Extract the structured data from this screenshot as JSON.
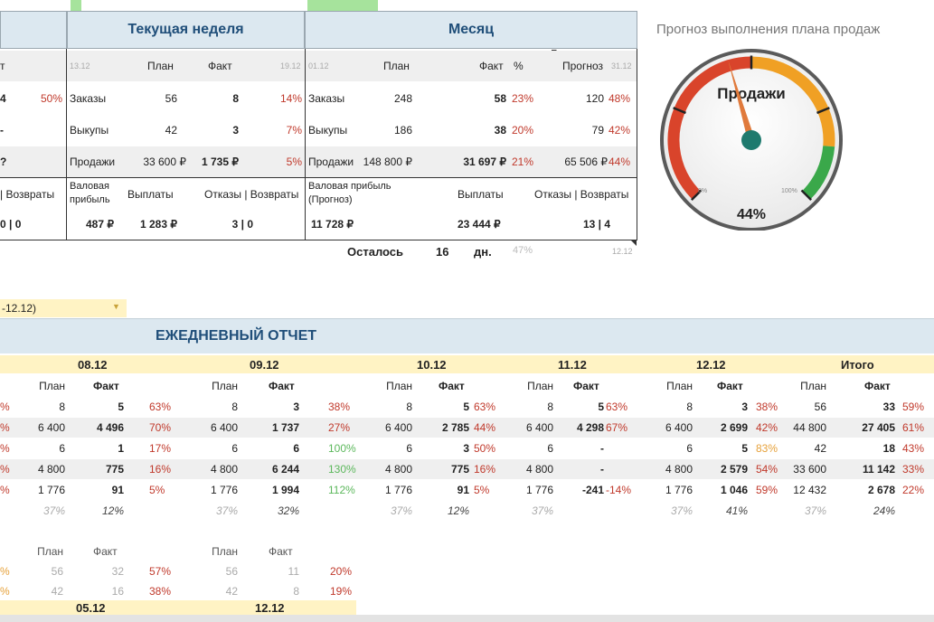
{
  "header": {
    "week_title": "Текущая неделя",
    "month_title": "Месяц",
    "gauge_title": "Прогноз выполнения плана продаж"
  },
  "left_fragments": {
    "r1": "т",
    "r2a": "4",
    "r2b": "50%",
    "r3": "-",
    "r4": "?",
    "r5": "| Возвраты",
    "r6": "0 | 0"
  },
  "week": {
    "date_start": "13.12",
    "col_plan": "План",
    "col_fact": "Факт",
    "date_end": "19.12",
    "rows": [
      {
        "label": "Заказы",
        "plan": "56",
        "fact": "8",
        "pct": "14%"
      },
      {
        "label": "Выкупы",
        "plan": "42",
        "fact": "3",
        "pct": "7%"
      },
      {
        "label": "Продажи",
        "plan": "33 600 ₽",
        "fact": "1 735 ₽",
        "pct": "5%"
      }
    ],
    "foot_labels": {
      "gross": "Валовая прибыль",
      "payouts": "Выплаты",
      "refusals": "Отказы | Возвраты"
    },
    "foot_values": {
      "gross": "487 ₽",
      "payouts": "1 283 ₽",
      "refusals": "3 | 0"
    }
  },
  "month": {
    "date_start": "01.12",
    "col_plan": "План",
    "col_fact": "Факт",
    "col_pct": "%",
    "col_forecast": "Прогноз",
    "date_end": "31.12",
    "rows": [
      {
        "label": "Заказы",
        "plan": "248",
        "fact": "58",
        "pct": "23%",
        "forecast": "120",
        "fpct": "48%"
      },
      {
        "label": "Выкупы",
        "plan": "186",
        "fact": "38",
        "pct": "20%",
        "forecast": "79",
        "fpct": "42%"
      },
      {
        "label": "Продажи",
        "plan": "148 800 ₽",
        "fact": "31 697 ₽",
        "pct": "21%",
        "forecast": "65 506 ₽",
        "fpct": "44%"
      }
    ],
    "foot_labels": {
      "gross": "Валовая прибыль (Прогноз)",
      "payouts": "Выплаты",
      "refusals": "Отказы | Возвраты"
    },
    "foot_values": {
      "gross": "11 728 ₽",
      "payouts": "23 444 ₽",
      "refusals": "13 | 4"
    },
    "remaining_label": "Осталось",
    "remaining_days": "16",
    "remaining_unit": "дн.",
    "remaining_pct": "47%",
    "remaining_date": "12.12"
  },
  "gauge": {
    "label": "Продажи",
    "value_text": "44%",
    "min_label": "0%",
    "max_label": "100%",
    "value": 44,
    "colors": {
      "red": "#d9442b",
      "orange": "#f0a024",
      "green": "#3aa84a",
      "needle": "#e07a3c",
      "hub": "#1e7a6e"
    }
  },
  "period_select": {
    "value": "-12.12)"
  },
  "daily": {
    "title": "ЕЖЕДНЕВНЫЙ ОТЧЕТ",
    "days": [
      "08.12",
      "09.12",
      "10.12",
      "11.12",
      "12.12",
      "Итого"
    ],
    "plan_label": "План",
    "fact_label": "Факт",
    "rows": [
      {
        "left": "%",
        "cells": [
          [
            "8",
            "5",
            "63%"
          ],
          [
            "8",
            "3",
            "38%"
          ],
          [
            "8",
            "5",
            "63%"
          ],
          [
            "8",
            "5",
            "63%"
          ],
          [
            "8",
            "3",
            "38%"
          ],
          [
            "56",
            "33",
            "59%"
          ]
        ]
      },
      {
        "left": "%",
        "cells": [
          [
            "6 400",
            "4 496",
            "70%"
          ],
          [
            "6 400",
            "1 737",
            "27%"
          ],
          [
            "6 400",
            "2 785",
            "44%"
          ],
          [
            "6 400",
            "4 298",
            "67%"
          ],
          [
            "6 400",
            "2 699",
            "42%"
          ],
          [
            "44 800",
            "27 405",
            "61%"
          ]
        ]
      },
      {
        "left": "%",
        "cells": [
          [
            "6",
            "1",
            "17%"
          ],
          [
            "6",
            "6",
            "100%"
          ],
          [
            "6",
            "3",
            "50%"
          ],
          [
            "6",
            "-",
            ""
          ],
          [
            "6",
            "5",
            "83%"
          ],
          [
            "42",
            "18",
            "43%"
          ]
        ]
      },
      {
        "left": "%",
        "cells": [
          [
            "4 800",
            "775",
            "16%"
          ],
          [
            "4 800",
            "6 244",
            "130%"
          ],
          [
            "4 800",
            "775",
            "16%"
          ],
          [
            "4 800",
            "-",
            ""
          ],
          [
            "4 800",
            "2 579",
            "54%"
          ],
          [
            "33 600",
            "11 142",
            "33%"
          ]
        ]
      },
      {
        "left": "%",
        "cells": [
          [
            "1 776",
            "91",
            "5%"
          ],
          [
            "1 776",
            "1 994",
            "112%"
          ],
          [
            "1 776",
            "91",
            "5%"
          ],
          [
            "1 776",
            "-241",
            "-14%"
          ],
          [
            "1 776",
            "1 046",
            "59%"
          ],
          [
            "12 432",
            "2 678",
            "22%"
          ]
        ]
      }
    ],
    "footer_pcts": [
      [
        "37%",
        "12%"
      ],
      [
        "37%",
        "32%"
      ],
      [
        "37%",
        "12%"
      ],
      [
        "37%",
        ""
      ],
      [
        "37%",
        "41%"
      ],
      [
        "37%",
        "24%"
      ]
    ]
  },
  "lower": {
    "plan_label": "План",
    "fact_label": "Факт",
    "rows": [
      {
        "left": "%",
        "a": [
          "56",
          "32",
          "57%"
        ],
        "b": [
          "56",
          "11",
          "20%"
        ]
      },
      {
        "left": "%",
        "a": [
          "42",
          "16",
          "38%"
        ],
        "b": [
          "42",
          "8",
          "19%"
        ]
      }
    ],
    "dates": [
      "05.12",
      "12.12"
    ]
  }
}
